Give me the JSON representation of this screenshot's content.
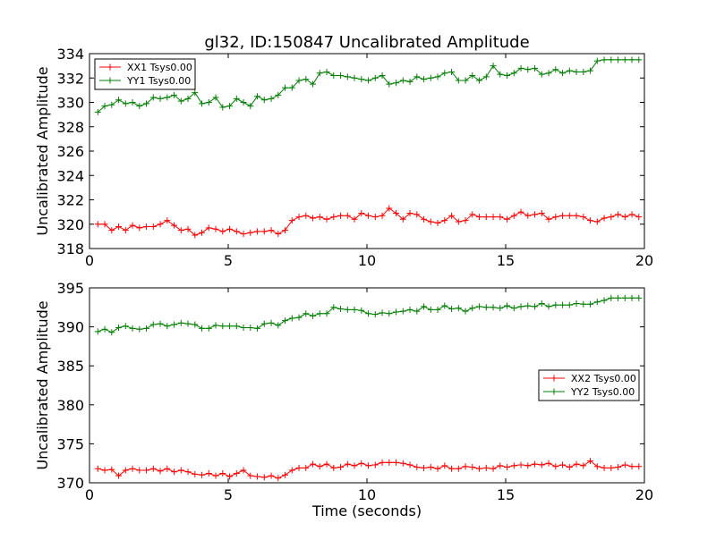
{
  "chart_data": [
    {
      "type": "line",
      "title": "gl32, ID:150847 Uncalibrated Amplitude",
      "xlabel": "",
      "ylabel": "Uncalibrated Amplitude",
      "xlim": [
        0,
        20
      ],
      "ylim": [
        318,
        334
      ],
      "xticks": [
        0,
        5,
        10,
        15,
        20
      ],
      "yticks": [
        318,
        320,
        322,
        324,
        326,
        328,
        330,
        332,
        334
      ],
      "legend_position": "top-left",
      "series": [
        {
          "name": "XX1 Tsys0.00",
          "color": "#ff0000",
          "x": [
            0.3,
            0.55,
            0.8,
            1.05,
            1.3,
            1.55,
            1.8,
            2.05,
            2.3,
            2.55,
            2.8,
            3.05,
            3.3,
            3.55,
            3.8,
            4.05,
            4.3,
            4.55,
            4.8,
            5.05,
            5.3,
            5.55,
            5.8,
            6.05,
            6.3,
            6.55,
            6.8,
            7.05,
            7.3,
            7.55,
            7.8,
            8.05,
            8.3,
            8.55,
            8.8,
            9.05,
            9.3,
            9.55,
            9.8,
            10.05,
            10.3,
            10.55,
            10.8,
            11.05,
            11.3,
            11.55,
            11.8,
            12.05,
            12.3,
            12.55,
            12.8,
            13.05,
            13.3,
            13.55,
            13.8,
            14.05,
            14.3,
            14.55,
            14.8,
            15.05,
            15.3,
            15.55,
            15.8,
            16.05,
            16.3,
            16.55,
            16.8,
            17.05,
            17.3,
            17.55,
            17.8,
            18.05,
            18.3,
            18.55,
            18.8,
            19.05,
            19.3,
            19.55,
            19.8
          ],
          "y": [
            320.0,
            320.0,
            319.5,
            319.8,
            319.5,
            319.9,
            319.7,
            319.8,
            319.8,
            320.0,
            320.3,
            319.9,
            319.5,
            319.6,
            319.1,
            319.3,
            319.7,
            319.6,
            319.4,
            319.6,
            319.4,
            319.2,
            319.3,
            319.4,
            319.4,
            319.5,
            319.2,
            319.5,
            320.3,
            320.6,
            320.7,
            320.5,
            320.6,
            320.4,
            320.6,
            320.7,
            320.7,
            320.4,
            320.9,
            320.7,
            320.6,
            320.7,
            321.3,
            320.9,
            320.4,
            320.9,
            320.8,
            320.4,
            320.2,
            320.1,
            320.3,
            320.7,
            320.2,
            320.3,
            320.8,
            320.6,
            320.6,
            320.6,
            320.6,
            320.4,
            320.7,
            321.0,
            320.7,
            320.8,
            320.9,
            320.4,
            320.6,
            320.7,
            320.7,
            320.7,
            320.6,
            320.3,
            320.2,
            320.5,
            320.6,
            320.8,
            320.6,
            320.8,
            320.6
          ]
        },
        {
          "name": "YY1 Tsys0.00",
          "color": "#008000",
          "x": [
            0.3,
            0.55,
            0.8,
            1.05,
            1.3,
            1.55,
            1.8,
            2.05,
            2.3,
            2.55,
            2.8,
            3.05,
            3.3,
            3.55,
            3.8,
            4.05,
            4.3,
            4.55,
            4.8,
            5.05,
            5.3,
            5.55,
            5.8,
            6.05,
            6.3,
            6.55,
            6.8,
            7.05,
            7.3,
            7.55,
            7.8,
            8.05,
            8.3,
            8.55,
            8.8,
            9.05,
            9.3,
            9.55,
            9.8,
            10.05,
            10.3,
            10.55,
            10.8,
            11.05,
            11.3,
            11.55,
            11.8,
            12.05,
            12.3,
            12.55,
            12.8,
            13.05,
            13.3,
            13.55,
            13.8,
            14.05,
            14.3,
            14.55,
            14.8,
            15.05,
            15.3,
            15.55,
            15.8,
            16.05,
            16.3,
            16.55,
            16.8,
            17.05,
            17.3,
            17.55,
            17.8,
            18.05,
            18.3,
            18.55,
            18.8,
            19.05,
            19.3,
            19.55,
            19.8
          ],
          "y": [
            329.2,
            329.7,
            329.8,
            330.2,
            329.9,
            330.0,
            329.7,
            329.9,
            330.4,
            330.3,
            330.4,
            330.6,
            330.1,
            330.3,
            330.8,
            329.9,
            330.0,
            330.4,
            329.6,
            329.7,
            330.3,
            330.0,
            329.7,
            330.5,
            330.2,
            330.3,
            330.6,
            331.2,
            331.2,
            331.8,
            331.9,
            331.5,
            332.4,
            332.5,
            332.2,
            332.2,
            332.1,
            332.0,
            331.9,
            331.8,
            332.0,
            332.2,
            331.5,
            331.6,
            331.8,
            331.7,
            332.1,
            331.9,
            332.0,
            332.1,
            332.4,
            332.5,
            331.8,
            331.8,
            332.2,
            331.8,
            332.1,
            333.0,
            332.3,
            332.2,
            332.4,
            332.8,
            332.7,
            332.8,
            332.3,
            332.4,
            332.7,
            332.4,
            332.6,
            332.5,
            332.5,
            332.6,
            333.4,
            333.5,
            333.5,
            333.5,
            333.5,
            333.5,
            333.5
          ]
        }
      ]
    },
    {
      "type": "line",
      "title": "",
      "xlabel": "Time (seconds)",
      "ylabel": "Uncalibrated Amplitude",
      "xlim": [
        0,
        20
      ],
      "ylim": [
        370,
        395
      ],
      "xticks": [
        0,
        5,
        10,
        15,
        20
      ],
      "yticks": [
        370,
        375,
        380,
        385,
        390,
        395
      ],
      "legend_position": "center-right",
      "series": [
        {
          "name": "XX2 Tsys0.00",
          "color": "#ff0000",
          "x": [
            0.3,
            0.55,
            0.8,
            1.05,
            1.3,
            1.55,
            1.8,
            2.05,
            2.3,
            2.55,
            2.8,
            3.05,
            3.3,
            3.55,
            3.8,
            4.05,
            4.3,
            4.55,
            4.8,
            5.05,
            5.3,
            5.55,
            5.8,
            6.05,
            6.3,
            6.55,
            6.8,
            7.05,
            7.3,
            7.55,
            7.8,
            8.05,
            8.3,
            8.55,
            8.8,
            9.05,
            9.3,
            9.55,
            9.8,
            10.05,
            10.3,
            10.55,
            10.8,
            11.05,
            11.3,
            11.55,
            11.8,
            12.05,
            12.3,
            12.55,
            12.8,
            13.05,
            13.3,
            13.55,
            13.8,
            14.05,
            14.3,
            14.55,
            14.8,
            15.05,
            15.3,
            15.55,
            15.8,
            16.05,
            16.3,
            16.55,
            16.8,
            17.05,
            17.3,
            17.55,
            17.8,
            18.05,
            18.3,
            18.55,
            18.8,
            19.05,
            19.3,
            19.55,
            19.8
          ],
          "y": [
            371.8,
            371.6,
            371.7,
            370.9,
            371.6,
            371.8,
            371.6,
            371.6,
            371.8,
            371.5,
            371.8,
            371.4,
            371.6,
            371.4,
            371.1,
            371.0,
            371.2,
            370.9,
            371.2,
            370.8,
            371.2,
            371.6,
            370.9,
            370.8,
            370.7,
            370.9,
            370.6,
            371.0,
            371.6,
            371.9,
            371.9,
            372.4,
            372.1,
            372.4,
            371.9,
            372.0,
            372.4,
            372.2,
            372.5,
            372.2,
            372.3,
            372.6,
            372.6,
            372.6,
            372.5,
            372.3,
            372.0,
            371.9,
            372.0,
            371.8,
            372.2,
            371.8,
            371.8,
            372.1,
            372.0,
            371.8,
            371.9,
            371.8,
            372.2,
            372.0,
            372.2,
            372.3,
            372.2,
            372.4,
            372.3,
            372.5,
            372.1,
            372.3,
            372.0,
            372.4,
            372.2,
            372.8,
            372.1,
            371.9,
            371.9,
            372.0,
            372.3,
            372.1,
            372.1
          ]
        },
        {
          "name": "YY2 Tsys0.00",
          "color": "#008000",
          "x": [
            0.3,
            0.55,
            0.8,
            1.05,
            1.3,
            1.55,
            1.8,
            2.05,
            2.3,
            2.55,
            2.8,
            3.05,
            3.3,
            3.55,
            3.8,
            4.05,
            4.3,
            4.55,
            4.8,
            5.05,
            5.3,
            5.55,
            5.8,
            6.05,
            6.3,
            6.55,
            6.8,
            7.05,
            7.3,
            7.55,
            7.8,
            8.05,
            8.3,
            8.55,
            8.8,
            9.05,
            9.3,
            9.55,
            9.8,
            10.05,
            10.3,
            10.55,
            10.8,
            11.05,
            11.3,
            11.55,
            11.8,
            12.05,
            12.3,
            12.55,
            12.8,
            13.05,
            13.3,
            13.55,
            13.8,
            14.05,
            14.3,
            14.55,
            14.8,
            15.05,
            15.3,
            15.55,
            15.8,
            16.05,
            16.3,
            16.55,
            16.8,
            17.05,
            17.3,
            17.55,
            17.8,
            18.05,
            18.3,
            18.55,
            18.8,
            19.05,
            19.3,
            19.55,
            19.8
          ],
          "y": [
            389.4,
            389.7,
            389.3,
            389.9,
            390.1,
            389.8,
            389.7,
            389.8,
            390.3,
            390.4,
            390.1,
            390.3,
            390.5,
            390.4,
            390.3,
            389.8,
            389.8,
            390.2,
            390.1,
            390.1,
            390.1,
            389.9,
            389.9,
            389.8,
            390.4,
            390.5,
            390.2,
            390.8,
            391.1,
            391.2,
            391.7,
            391.4,
            391.7,
            391.7,
            392.5,
            392.3,
            392.2,
            392.2,
            392.1,
            391.7,
            391.6,
            391.8,
            391.7,
            391.9,
            392.0,
            392.2,
            392.0,
            392.6,
            392.2,
            392.2,
            392.7,
            392.3,
            392.4,
            392.0,
            392.4,
            392.6,
            392.5,
            392.5,
            392.4,
            392.7,
            392.4,
            392.6,
            392.7,
            392.6,
            393.0,
            392.6,
            392.8,
            392.8,
            392.8,
            393.0,
            392.9,
            392.9,
            393.2,
            393.4,
            393.7,
            393.7,
            393.7,
            393.7,
            393.7
          ]
        }
      ]
    }
  ]
}
